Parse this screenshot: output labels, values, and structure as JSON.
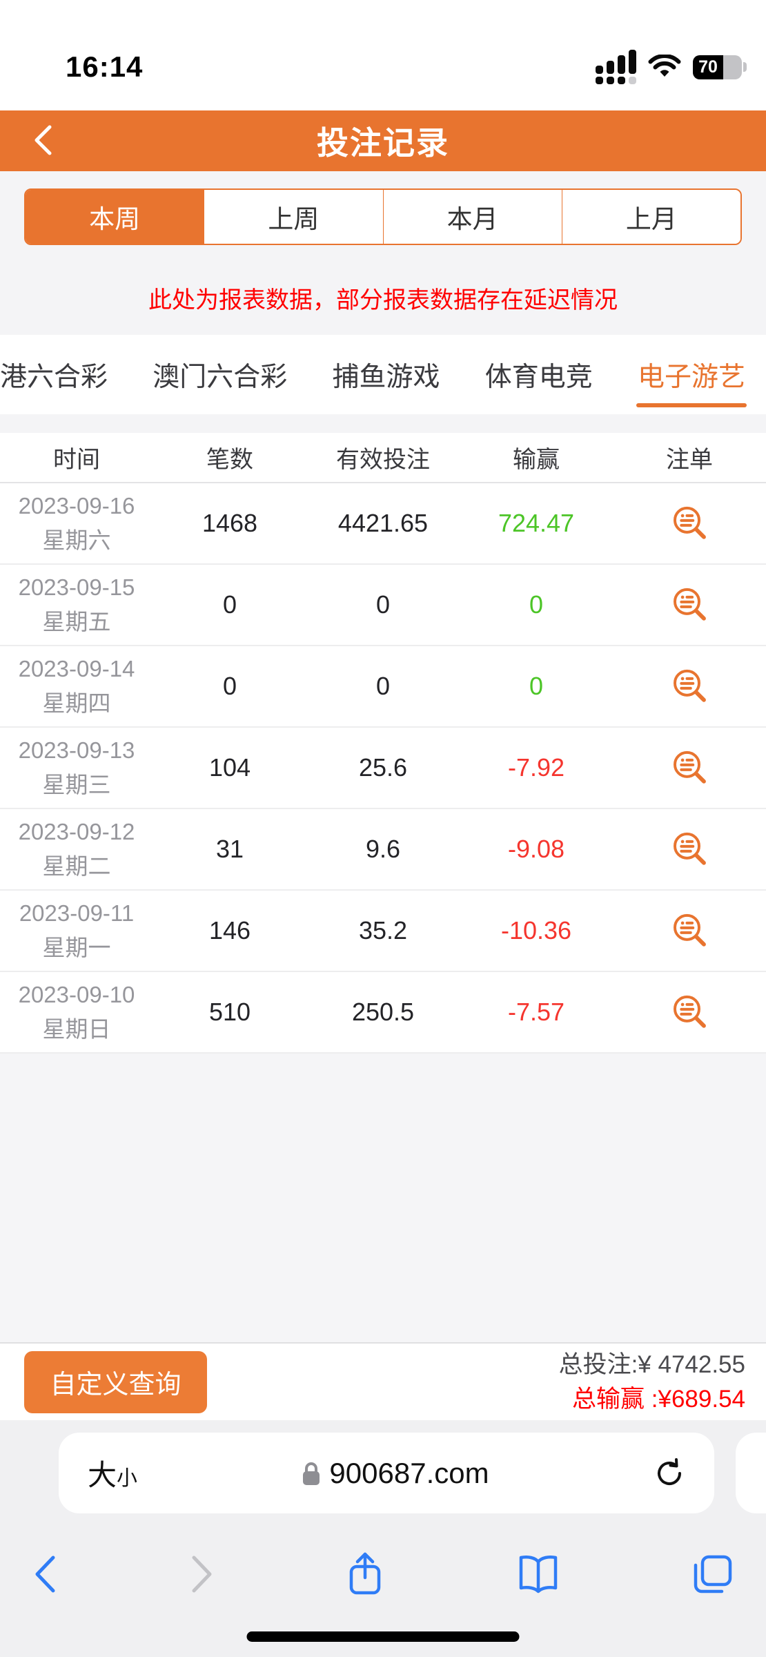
{
  "status_bar": {
    "time": "16:14",
    "battery_percent": "70"
  },
  "header": {
    "title": "投注记录"
  },
  "period_tabs": [
    {
      "label": "本周",
      "name": "this-week",
      "active": true
    },
    {
      "label": "上周",
      "name": "last-week",
      "active": false
    },
    {
      "label": "本月",
      "name": "this-month",
      "active": false
    },
    {
      "label": "上月",
      "name": "last-month",
      "active": false
    }
  ],
  "notice": "此处为报表数据，部分报表数据存在延迟情况",
  "category_tabs": [
    {
      "label": "港六合彩",
      "name": "hk-mark-six",
      "active": false
    },
    {
      "label": "澳门六合彩",
      "name": "macau-mark-six",
      "active": false
    },
    {
      "label": "捕鱼游戏",
      "name": "fishing-games",
      "active": false
    },
    {
      "label": "体育电竞",
      "name": "sports-esports",
      "active": false
    },
    {
      "label": "电子游艺",
      "name": "electronic-games",
      "active": true
    }
  ],
  "table": {
    "columns": [
      "时间",
      "笔数",
      "有效投注",
      "输赢",
      "注单"
    ],
    "rows": [
      {
        "date": "2023-09-16",
        "weekday": "星期六",
        "count": "1468",
        "valid_bet": "4421.65",
        "win_loss": "724.47"
      },
      {
        "date": "2023-09-15",
        "weekday": "星期五",
        "count": "0",
        "valid_bet": "0",
        "win_loss": "0"
      },
      {
        "date": "2023-09-14",
        "weekday": "星期四",
        "count": "0",
        "valid_bet": "0",
        "win_loss": "0"
      },
      {
        "date": "2023-09-13",
        "weekday": "星期三",
        "count": "104",
        "valid_bet": "25.6",
        "win_loss": "-7.92"
      },
      {
        "date": "2023-09-12",
        "weekday": "星期二",
        "count": "31",
        "valid_bet": "9.6",
        "win_loss": "-9.08"
      },
      {
        "date": "2023-09-11",
        "weekday": "星期一",
        "count": "146",
        "valid_bet": "35.2",
        "win_loss": "-10.36"
      },
      {
        "date": "2023-09-10",
        "weekday": "星期日",
        "count": "510",
        "valid_bet": "250.5",
        "win_loss": "-7.57"
      }
    ]
  },
  "summary": {
    "query_button": "自定义查询",
    "total_bet": "总投注:¥ 4742.55",
    "total_win": "总输赢 :¥689.54"
  },
  "browser": {
    "text_size_big": "大",
    "text_size_small": "小",
    "host": "900687.com"
  },
  "colors": {
    "accent": "#E8742F",
    "positive_green": "#4CC527",
    "negative_red": "#F5352E",
    "warning_red": "#FF0000",
    "ios_blue": "#2F7CF6"
  }
}
